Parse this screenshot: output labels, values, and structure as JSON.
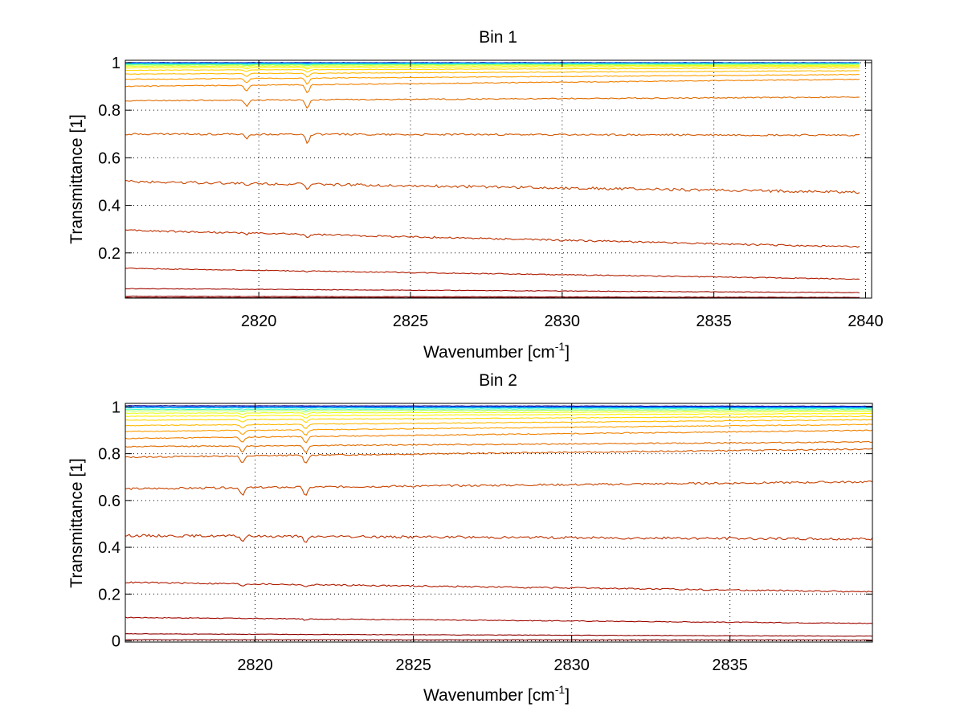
{
  "colors": [
    "#00008f",
    "#0050ff",
    "#00bfff",
    "#40ffbf",
    "#9fff60",
    "#e6ff19",
    "#ffef00",
    "#ffd700",
    "#ffb900",
    "#ff9f00",
    "#f08000",
    "#e06c00",
    "#d45800",
    "#c84400",
    "#bd3000",
    "#b01c00",
    "#a00800",
    "#8f0000",
    "#800000"
  ],
  "chart_data": [
    {
      "type": "line",
      "title": "Bin 1",
      "xlabel": "Wavenumber [cm",
      "xlabel_sup": "-1",
      "xlabel_suffix": "]",
      "ylabel": "Transmittance [1]",
      "xlim": [
        2815.6,
        2840.2
      ],
      "ylim": [
        0.01,
        1.01
      ],
      "xticks": [
        2820,
        2825,
        2830,
        2835,
        2840
      ],
      "yticks": [
        0.2,
        0.4,
        0.6,
        0.8,
        1
      ],
      "ytick_labels": [
        "0.2",
        "0.4",
        "0.6",
        "0.8",
        "1"
      ],
      "x_end": 2839.8,
      "grid": true,
      "series": [
        {
          "start": 1.0,
          "end": 1.0,
          "dips": [
            0,
            0
          ]
        },
        {
          "start": 0.998,
          "end": 0.999,
          "dips": [
            0,
            0
          ]
        },
        {
          "start": 0.996,
          "end": 0.997,
          "dips": [
            0.001,
            0.002
          ]
        },
        {
          "start": 0.993,
          "end": 0.995,
          "dips": [
            0.002,
            0.003
          ]
        },
        {
          "start": 0.99,
          "end": 0.993,
          "dips": [
            0.003,
            0.004
          ]
        },
        {
          "start": 0.985,
          "end": 0.989,
          "dips": [
            0.004,
            0.006
          ]
        },
        {
          "start": 0.978,
          "end": 0.985,
          "dips": [
            0.006,
            0.008
          ]
        },
        {
          "start": 0.968,
          "end": 0.978,
          "dips": [
            0.008,
            0.011
          ]
        },
        {
          "start": 0.952,
          "end": 0.966,
          "dips": [
            0.012,
            0.016
          ]
        },
        {
          "start": 0.93,
          "end": 0.95,
          "dips": [
            0.018,
            0.025
          ]
        },
        {
          "start": 0.9,
          "end": 0.93,
          "dips": [
            0.025,
            0.035
          ]
        },
        {
          "start": 0.84,
          "end": 0.855,
          "dips": [
            0.025,
            0.035
          ]
        },
        {
          "start": 0.7,
          "end": 0.695,
          "dips": [
            0.02,
            0.035
          ]
        },
        {
          "start": 0.5,
          "end": 0.455,
          "dips": [
            0.012,
            0.025
          ]
        },
        {
          "start": 0.295,
          "end": 0.225,
          "dips": [
            0.005,
            0.012
          ]
        },
        {
          "start": 0.135,
          "end": 0.09,
          "dips": [
            0,
            0.003
          ]
        },
        {
          "start": 0.05,
          "end": 0.033,
          "dips": [
            0,
            0
          ]
        },
        {
          "start": 0.018,
          "end": 0.013,
          "dips": [
            0,
            0
          ]
        },
        {
          "start": 0.012,
          "end": 0.011,
          "dips": [
            0,
            0
          ]
        }
      ]
    },
    {
      "type": "line",
      "title": "Bin 2",
      "xlabel": "Wavenumber [cm",
      "xlabel_sup": "-1",
      "xlabel_suffix": "]",
      "ylabel": "Transmittance [1]",
      "xlim": [
        2815.9,
        2839.5
      ],
      "ylim": [
        -0.005,
        1.015
      ],
      "xticks": [
        2820,
        2825,
        2830,
        2835
      ],
      "yticks": [
        0,
        0.2,
        0.4,
        0.6,
        0.8,
        1
      ],
      "ytick_labels": [
        "0",
        "0.2",
        "0.4",
        "0.6",
        "0.8",
        "1"
      ],
      "x_end": 2839.5,
      "grid": true,
      "series": [
        {
          "start": 1.005,
          "end": 1.003,
          "dips": [
            0,
            0
          ]
        },
        {
          "start": 1.0,
          "end": 1.0,
          "dips": [
            0,
            0
          ]
        },
        {
          "start": 0.997,
          "end": 0.996,
          "dips": [
            0.002,
            0.002
          ]
        },
        {
          "start": 0.99,
          "end": 0.992,
          "dips": [
            0.003,
            0.004
          ]
        },
        {
          "start": 0.983,
          "end": 0.987,
          "dips": [
            0.004,
            0.006
          ]
        },
        {
          "start": 0.973,
          "end": 0.98,
          "dips": [
            0.006,
            0.008
          ]
        },
        {
          "start": 0.96,
          "end": 0.972,
          "dips": [
            0.008,
            0.011
          ]
        },
        {
          "start": 0.943,
          "end": 0.96,
          "dips": [
            0.011,
            0.014
          ]
        },
        {
          "start": 0.92,
          "end": 0.945,
          "dips": [
            0.015,
            0.019
          ]
        },
        {
          "start": 0.895,
          "end": 0.925,
          "dips": [
            0.019,
            0.024
          ]
        },
        {
          "start": 0.865,
          "end": 0.9,
          "dips": [
            0.023,
            0.028
          ]
        },
        {
          "start": 0.83,
          "end": 0.85,
          "dips": [
            0.028,
            0.032
          ]
        },
        {
          "start": 0.785,
          "end": 0.82,
          "dips": [
            0.032,
            0.035
          ]
        },
        {
          "start": 0.65,
          "end": 0.68,
          "dips": [
            0.03,
            0.038
          ]
        },
        {
          "start": 0.45,
          "end": 0.435,
          "dips": [
            0.02,
            0.03
          ]
        },
        {
          "start": 0.25,
          "end": 0.21,
          "dips": [
            0.008,
            0.012
          ]
        },
        {
          "start": 0.1,
          "end": 0.075,
          "dips": [
            0,
            0.006
          ]
        },
        {
          "start": 0.03,
          "end": 0.02,
          "dips": [
            0,
            0
          ]
        },
        {
          "start": 0.005,
          "end": 0.004,
          "dips": [
            0,
            0
          ]
        }
      ]
    }
  ]
}
